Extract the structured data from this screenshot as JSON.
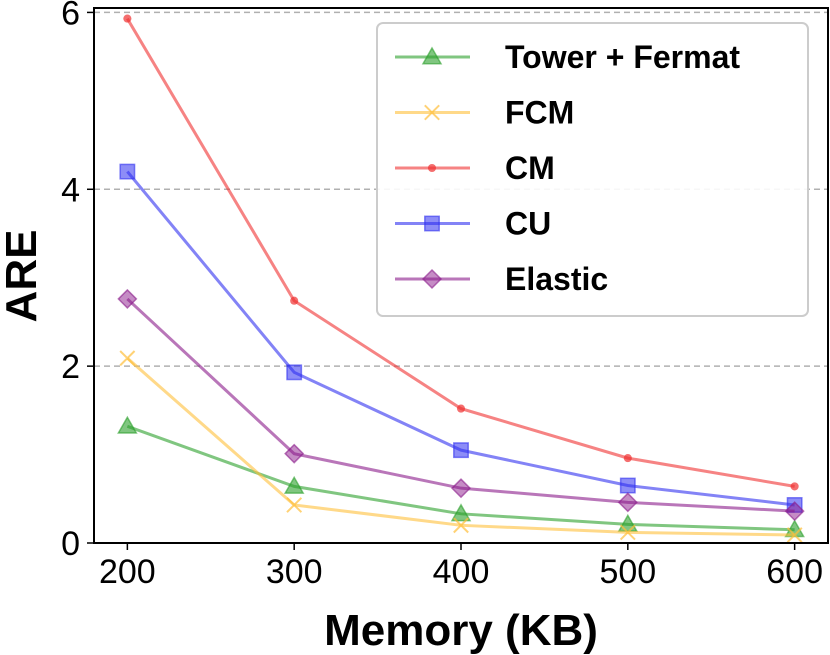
{
  "chart_data": {
    "type": "line",
    "xlabel": "Memory (KB)",
    "ylabel": "ARE",
    "x": [
      200,
      300,
      400,
      500,
      600
    ],
    "xlim": [
      180,
      620
    ],
    "ylim": [
      0,
      6.05
    ],
    "xticks": [
      "200",
      "300",
      "400",
      "500",
      "600"
    ],
    "yticks": [
      "0",
      "2",
      "4",
      "6"
    ],
    "grid": "horizontal dashed",
    "legend_position": "top-right",
    "series": [
      {
        "name": "Tower + Fermat",
        "color": "#2ca02c",
        "marker": "triangle",
        "values": [
          1.32,
          0.64,
          0.33,
          0.21,
          0.15
        ]
      },
      {
        "name": "FCM",
        "color": "#ffbf3a",
        "marker": "x",
        "values": [
          2.09,
          0.43,
          0.2,
          0.12,
          0.09
        ]
      },
      {
        "name": "CM",
        "color": "#f03030",
        "marker": "dot",
        "values": [
          5.93,
          2.74,
          1.52,
          0.96,
          0.64
        ]
      },
      {
        "name": "CU",
        "color": "#3030f0",
        "marker": "square",
        "values": [
          4.2,
          1.93,
          1.05,
          0.65,
          0.43
        ]
      },
      {
        "name": "Elastic",
        "color": "#8b1a8b",
        "marker": "diamond",
        "values": [
          2.76,
          1.01,
          0.62,
          0.46,
          0.36
        ]
      }
    ]
  }
}
